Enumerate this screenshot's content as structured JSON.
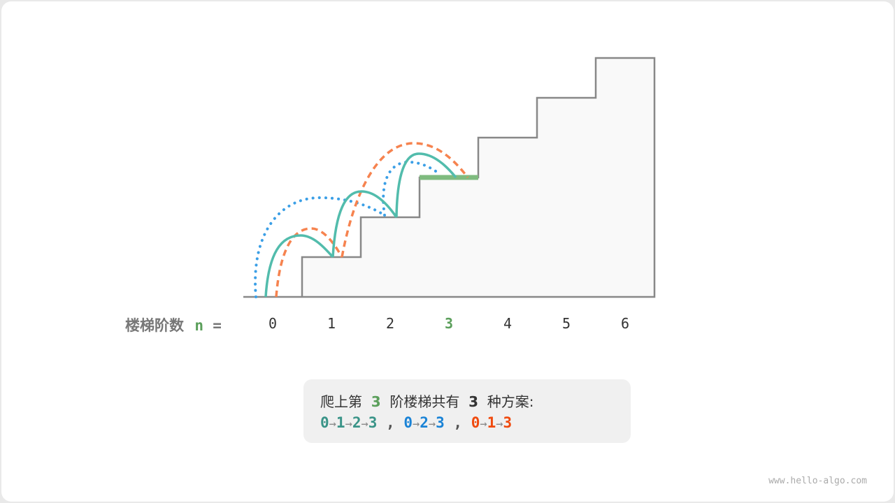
{
  "axis_label": {
    "text": "楼梯阶数",
    "var": "n",
    "eq": "="
  },
  "steps": [
    "0",
    "1",
    "2",
    "3",
    "4",
    "5",
    "6"
  ],
  "highlight_step": "3",
  "summary": {
    "pre": "爬上第",
    "n": "3",
    "mid": "阶楼梯共有",
    "count": "3",
    "post": "种方案:",
    "paths": [
      {
        "nodes": [
          "0",
          "1",
          "2",
          "3"
        ],
        "color": "#3a9488"
      },
      {
        "nodes": [
          "0",
          "2",
          "3"
        ],
        "color": "#1a83d6"
      },
      {
        "nodes": [
          "0",
          "1",
          "3"
        ],
        "color": "#f04a0e"
      }
    ],
    "arrow": "→",
    "sep": ","
  },
  "colors": {
    "teal_curve": "#52bcac",
    "orange_curve": "#f6834f",
    "blue_curve": "#3b9fe6",
    "highlight": "#7fbb7f",
    "green_text": "#5b9f5b"
  },
  "watermark": "www.hello-algo.com"
}
